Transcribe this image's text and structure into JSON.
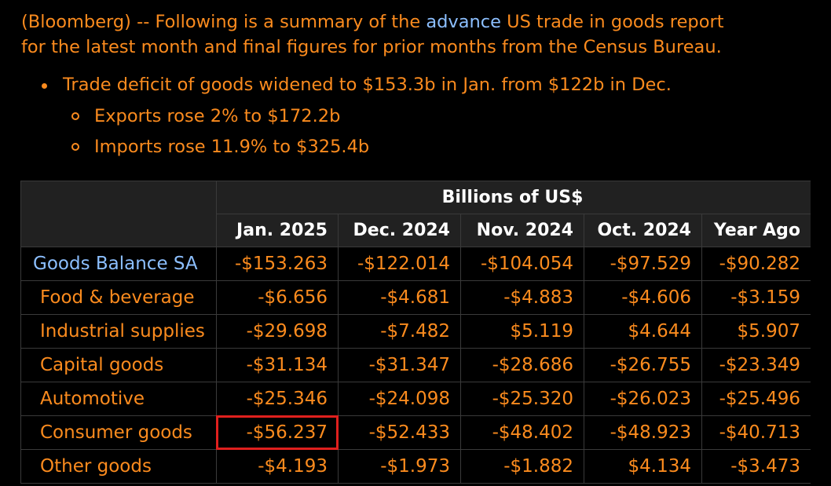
{
  "intro": {
    "line1_pre": "(Bloomberg) -- Following is a summary of the ",
    "link_text": "advance",
    "line1_post": " US trade in goods report",
    "line2": "for the latest month and final figures for prior months from the Census Bureau."
  },
  "bullets": {
    "main": "Trade deficit of goods widened to $153.3b in Jan. from $122b in Dec.",
    "sub1": "Exports rose 2% to $172.2b",
    "sub2": "Imports rose 11.9% to $325.4b"
  },
  "table": {
    "group_header": "Billions of US$",
    "columns": [
      "Jan. 2025",
      "Dec. 2024",
      "Nov. 2024",
      "Oct. 2024",
      "Year Ago"
    ],
    "rows": [
      {
        "label": "Goods Balance SA",
        "values": [
          "-$153.263",
          "-$122.014",
          "-$104.054",
          "-$97.529",
          "-$90.282"
        ]
      },
      {
        "label": "Food & beverage",
        "values": [
          "-$6.656",
          "-$4.681",
          "-$4.883",
          "-$4.606",
          "-$3.159"
        ]
      },
      {
        "label": "Industrial supplies",
        "values": [
          "-$29.698",
          "-$7.482",
          "$5.119",
          "$4.644",
          "$5.907"
        ]
      },
      {
        "label": "Capital goods",
        "values": [
          "-$31.134",
          "-$31.347",
          "-$28.686",
          "-$26.755",
          "-$23.349"
        ]
      },
      {
        "label": "Automotive",
        "values": [
          "-$25.346",
          "-$24.098",
          "-$25.320",
          "-$26.023",
          "-$25.496"
        ]
      },
      {
        "label": "Consumer goods",
        "values": [
          "-$56.237",
          "-$52.433",
          "-$48.402",
          "-$48.923",
          "-$40.713"
        ]
      },
      {
        "label": "Other goods",
        "values": [
          "-$4.193",
          "-$1.973",
          "-$1.882",
          "$4.134",
          "-$3.473"
        ]
      }
    ]
  },
  "colors": {
    "text": "#fb8b1e",
    "link": "#8cbfff",
    "highlight_box": "#e0201e",
    "header_bg": "#212121"
  }
}
